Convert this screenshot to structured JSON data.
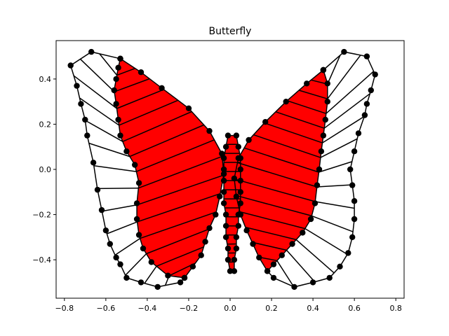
{
  "chart_data": {
    "type": "scatter",
    "title": "Butterfly",
    "xlabel": "",
    "ylabel": "",
    "xlim": [
      -0.84,
      0.84
    ],
    "ylim": [
      -0.57,
      0.57
    ],
    "xticks": [
      -0.8,
      -0.6,
      -0.4,
      -0.2,
      0.0,
      0.2,
      0.4,
      0.6,
      0.8
    ],
    "yticks": [
      -0.4,
      -0.2,
      0.0,
      0.2,
      0.4
    ],
    "xtick_labels": [
      "−0.8",
      "−0.6",
      "−0.4",
      "−0.2",
      "0.0",
      "0.2",
      "0.4",
      "0.6",
      "0.8"
    ],
    "ytick_labels": [
      "−0.4",
      "−0.2",
      "0.0",
      "0.2",
      "0.4"
    ],
    "grid": false,
    "colors": {
      "fill": "#ff0000",
      "mesh": "#000000"
    },
    "series": [
      {
        "role": "left outer wing edge",
        "points": [
          [
            -0.53,
            0.49
          ],
          [
            -0.67,
            0.52
          ],
          [
            -0.77,
            0.46
          ],
          [
            -0.74,
            0.37
          ],
          [
            -0.72,
            0.29
          ],
          [
            -0.7,
            0.22
          ],
          [
            -0.69,
            0.15
          ],
          [
            -0.66,
            0.03
          ],
          [
            -0.64,
            -0.09
          ],
          [
            -0.62,
            -0.18
          ],
          [
            -0.6,
            -0.27
          ],
          [
            -0.58,
            -0.33
          ],
          [
            -0.55,
            -0.39
          ],
          [
            -0.53,
            -0.42
          ],
          [
            -0.5,
            -0.48
          ],
          [
            -0.43,
            -0.5
          ],
          [
            -0.35,
            -0.52
          ],
          [
            -0.24,
            -0.5
          ],
          [
            -0.22,
            -0.48
          ]
        ]
      },
      {
        "role": "left red band outer edge",
        "points": [
          [
            -0.53,
            0.49
          ],
          [
            -0.54,
            0.45
          ],
          [
            -0.55,
            0.4
          ],
          [
            -0.56,
            0.35
          ],
          [
            -0.55,
            0.29
          ],
          [
            -0.54,
            0.22
          ],
          [
            -0.53,
            0.15
          ],
          [
            -0.5,
            0.08
          ],
          [
            -0.46,
            0.02
          ],
          [
            -0.44,
            -0.06
          ],
          [
            -0.45,
            -0.15
          ],
          [
            -0.45,
            -0.22
          ],
          [
            -0.44,
            -0.29
          ],
          [
            -0.42,
            -0.35
          ],
          [
            -0.38,
            -0.41
          ],
          [
            -0.3,
            -0.47
          ],
          [
            -0.22,
            -0.48
          ]
        ]
      },
      {
        "role": "left red band inner edge",
        "points": [
          [
            -0.53,
            0.49
          ],
          [
            -0.43,
            0.43
          ],
          [
            -0.33,
            0.36
          ],
          [
            -0.2,
            0.27
          ],
          [
            -0.1,
            0.17
          ],
          [
            -0.04,
            0.07
          ],
          [
            -0.03,
            -0.02
          ],
          [
            -0.05,
            -0.12
          ],
          [
            -0.07,
            -0.2
          ],
          [
            -0.1,
            -0.26
          ],
          [
            -0.12,
            -0.32
          ],
          [
            -0.14,
            -0.38
          ],
          [
            -0.18,
            -0.43
          ],
          [
            -0.22,
            -0.48
          ]
        ]
      },
      {
        "role": "right outer wing edge",
        "points": [
          [
            0.45,
            0.44
          ],
          [
            0.55,
            0.52
          ],
          [
            0.66,
            0.5
          ],
          [
            0.7,
            0.42
          ],
          [
            0.68,
            0.35
          ],
          [
            0.66,
            0.29
          ],
          [
            0.65,
            0.24
          ],
          [
            0.62,
            0.16
          ],
          [
            0.6,
            0.08
          ],
          [
            0.58,
            0.0
          ],
          [
            0.59,
            -0.07
          ],
          [
            0.6,
            -0.14
          ],
          [
            0.6,
            -0.22
          ],
          [
            0.59,
            -0.3
          ],
          [
            0.57,
            -0.37
          ],
          [
            0.53,
            -0.43
          ],
          [
            0.48,
            -0.48
          ],
          [
            0.4,
            -0.5
          ],
          [
            0.31,
            -0.52
          ],
          [
            0.21,
            -0.48
          ]
        ]
      },
      {
        "role": "right red band outer edge",
        "points": [
          [
            0.45,
            0.44
          ],
          [
            0.47,
            0.38
          ],
          [
            0.47,
            0.3
          ],
          [
            0.46,
            0.22
          ],
          [
            0.45,
            0.15
          ],
          [
            0.44,
            0.08
          ],
          [
            0.43,
            0.0
          ],
          [
            0.42,
            -0.07
          ],
          [
            0.41,
            -0.15
          ],
          [
            0.39,
            -0.22
          ],
          [
            0.35,
            -0.28
          ],
          [
            0.3,
            -0.33
          ],
          [
            0.25,
            -0.38
          ],
          [
            0.21,
            -0.42
          ],
          [
            0.18,
            -0.45
          ]
        ]
      },
      {
        "role": "right red band inner edge",
        "points": [
          [
            0.45,
            0.44
          ],
          [
            0.37,
            0.38
          ],
          [
            0.27,
            0.3
          ],
          [
            0.17,
            0.21
          ],
          [
            0.09,
            0.13
          ],
          [
            0.04,
            0.05
          ],
          [
            0.02,
            -0.04
          ],
          [
            0.03,
            -0.12
          ],
          [
            0.05,
            -0.2
          ],
          [
            0.08,
            -0.27
          ],
          [
            0.11,
            -0.33
          ],
          [
            0.14,
            -0.39
          ],
          [
            0.18,
            -0.45
          ]
        ]
      },
      {
        "role": "body column left",
        "points": [
          [
            -0.01,
            0.15
          ],
          [
            -0.02,
            0.1
          ],
          [
            -0.03,
            0.05
          ],
          [
            -0.03,
            0.0
          ],
          [
            -0.03,
            -0.05
          ],
          [
            -0.03,
            -0.1
          ],
          [
            -0.03,
            -0.15
          ],
          [
            -0.02,
            -0.2
          ],
          [
            -0.02,
            -0.25
          ],
          [
            -0.02,
            -0.3
          ],
          [
            -0.01,
            -0.35
          ],
          [
            -0.01,
            -0.4
          ],
          [
            0.0,
            -0.45
          ]
        ]
      },
      {
        "role": "body column right",
        "points": [
          [
            0.03,
            0.15
          ],
          [
            0.04,
            0.1
          ],
          [
            0.05,
            0.05
          ],
          [
            0.05,
            0.0
          ],
          [
            0.05,
            -0.05
          ],
          [
            0.05,
            -0.1
          ],
          [
            0.05,
            -0.15
          ],
          [
            0.04,
            -0.2
          ],
          [
            0.04,
            -0.25
          ],
          [
            0.03,
            -0.3
          ],
          [
            0.03,
            -0.35
          ],
          [
            0.02,
            -0.4
          ],
          [
            0.02,
            -0.45
          ]
        ]
      }
    ]
  }
}
